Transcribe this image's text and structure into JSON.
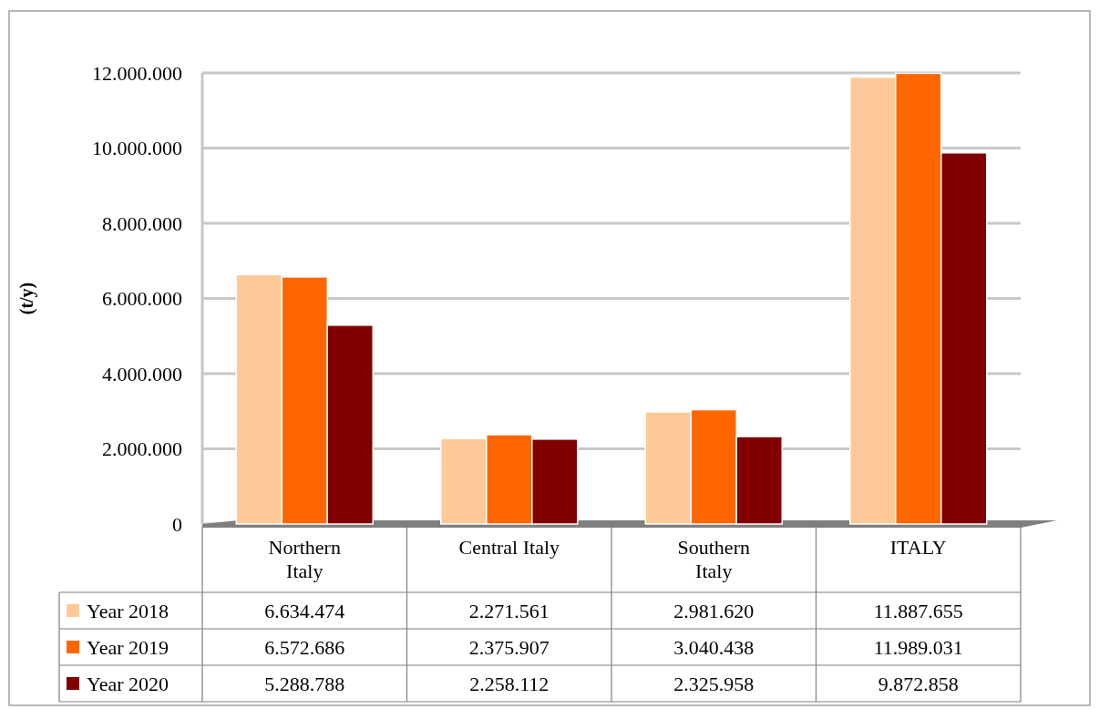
{
  "chart_data": {
    "type": "bar",
    "ylabel": "(t/y)",
    "categories": [
      "Northern Italy",
      "Central Italy",
      "Southern Italy",
      "ITALY"
    ],
    "series": [
      {
        "name": "Year 2018",
        "color": "#fdc998",
        "values": [
          6634474,
          2271561,
          2981620,
          11887655
        ],
        "value_labels": [
          "6.634.474",
          "2.271.561",
          "2.981.620",
          "11.887.655"
        ]
      },
      {
        "name": "Year 2019",
        "color": "#ff6600",
        "values": [
          6572686,
          2375907,
          3040438,
          11989031
        ],
        "value_labels": [
          "6.572.686",
          "2.375.907",
          "3.040.438",
          "11.989.031"
        ]
      },
      {
        "name": "Year 2020",
        "color": "#800000",
        "values": [
          5288788,
          2258112,
          2325958,
          9872858
        ],
        "value_labels": [
          "5.288.788",
          "2.258.112",
          "2.325.958",
          "9.872.858"
        ]
      }
    ],
    "ylim": [
      0,
      12000000
    ],
    "yticks": [
      {
        "value": 0,
        "label": "0"
      },
      {
        "value": 2000000,
        "label": "2.000.000"
      },
      {
        "value": 4000000,
        "label": "4.000.000"
      },
      {
        "value": 6000000,
        "label": "6.000.000"
      },
      {
        "value": 8000000,
        "label": "8.000.000"
      },
      {
        "value": 10000000,
        "label": "10.000.000"
      },
      {
        "value": 12000000,
        "label": "12.000.000"
      }
    ],
    "grid": "y",
    "legend": "bottom"
  }
}
